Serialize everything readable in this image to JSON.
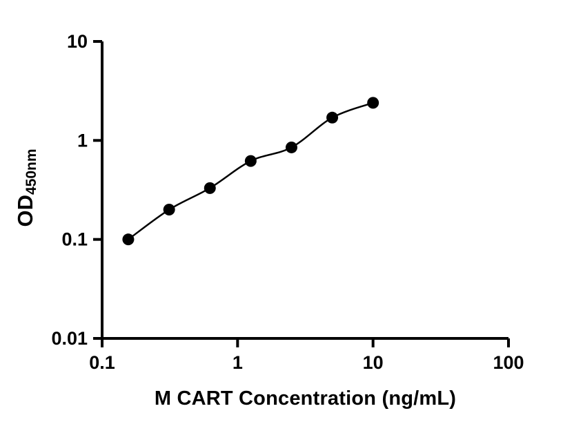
{
  "figure": {
    "background": "#ffffff"
  },
  "chart_data": {
    "type": "scatter",
    "subtype": "ELISA standard curve, log-log axes, points with fitted curve",
    "title": "",
    "xlabel": "M CART Concentration (ng/mL)",
    "ylabel_main": "OD",
    "ylabel_sub": "450nm",
    "x_scale": "log",
    "y_scale": "log",
    "xlim": [
      0.1,
      100
    ],
    "ylim": [
      0.01,
      10
    ],
    "grid": false,
    "legend": "none",
    "x_ticks": [
      {
        "value": 0.1,
        "label": "0.1"
      },
      {
        "value": 1,
        "label": "1"
      },
      {
        "value": 10,
        "label": "10"
      },
      {
        "value": 100,
        "label": "100"
      }
    ],
    "y_ticks": [
      {
        "value": 0.01,
        "label": "0.01"
      },
      {
        "value": 0.1,
        "label": "0.1"
      },
      {
        "value": 1,
        "label": "1"
      },
      {
        "value": 10,
        "label": "10"
      }
    ],
    "points": [
      {
        "x": 0.156,
        "y": 0.1
      },
      {
        "x": 0.3125,
        "y": 0.2
      },
      {
        "x": 0.625,
        "y": 0.33
      },
      {
        "x": 1.25,
        "y": 0.62
      },
      {
        "x": 2.5,
        "y": 0.85
      },
      {
        "x": 5,
        "y": 1.7
      },
      {
        "x": 10,
        "y": 2.4
      }
    ],
    "fit_line": true,
    "point_color": "#000000",
    "line_color": "#000000",
    "axis_color": "#000000"
  }
}
